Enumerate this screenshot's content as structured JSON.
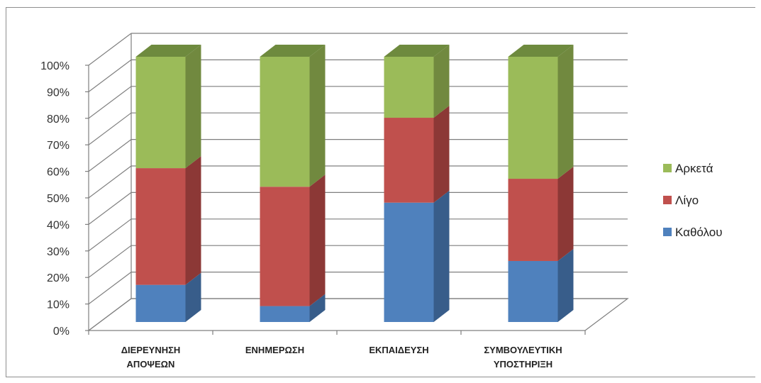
{
  "chart_data": {
    "type": "bar",
    "stacked": true,
    "percent_stacked": true,
    "three_d": true,
    "categories": [
      [
        "ΔΙΕΡΕΥΝΗΣΗ",
        "ΑΠΟΨΕΩΝ"
      ],
      [
        "ΕΝΗΜΕΡΩΣΗ"
      ],
      [
        "ΕΚΠΑΙΔΕΥΣΗ"
      ],
      [
        "ΣΥΜΒΟΥΛΕΥΤΙΚΗ",
        "ΥΠΟΣΤΗΡΙΞΗ"
      ]
    ],
    "series": [
      {
        "name": "Καθόλου",
        "values": [
          14,
          6,
          45,
          23
        ],
        "color": "#4f81bd",
        "side_color": "#385d8a",
        "top_color": "#3f6aa0"
      },
      {
        "name": "Λίγο",
        "values": [
          44,
          45,
          32,
          31
        ],
        "color": "#c0504d",
        "side_color": "#8c3836",
        "top_color": "#a44340"
      },
      {
        "name": "Αρκετά",
        "values": [
          42,
          49,
          23,
          46
        ],
        "color": "#9bbb59",
        "side_color": "#71893f",
        "top_color": "#6e8a3e"
      }
    ],
    "yticks": [
      "0%",
      "10%",
      "20%",
      "30%",
      "40%",
      "50%",
      "60%",
      "70%",
      "80%",
      "90%",
      "100%"
    ],
    "ylim": [
      0,
      100
    ],
    "grid": true,
    "legend_position": "right",
    "legend_order": [
      "Αρκετά",
      "Λίγο",
      "Καθόλου"
    ]
  }
}
